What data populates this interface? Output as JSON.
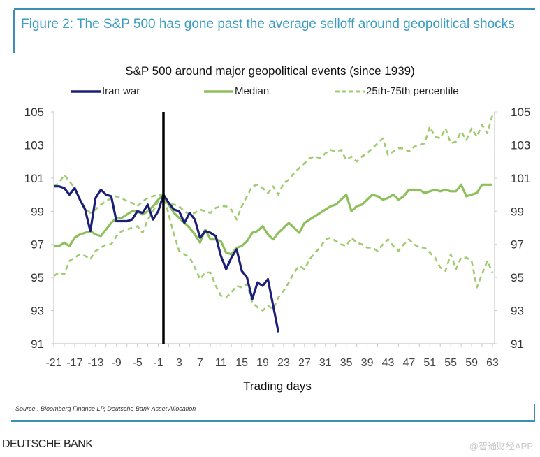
{
  "figure_title": "Figure 2: The S&P 500 has gone past the average selloff around geopolitical shocks",
  "source": "Source : Bloomberg Finance LP, Deutsche Bank Asset Allocation",
  "brand": "DEUTSCHE BANK",
  "watermark": "@智通财经APP",
  "colors": {
    "accent": "#3c9dc0",
    "iran_war": "#1b1f78",
    "median": "#8dbf5b",
    "percentile": "#9fcc6e",
    "event_line": "#000000"
  },
  "chart_data": {
    "type": "line",
    "title": "S&P 500 around major geopolitical events (since 1939)",
    "xlabel": "Trading days",
    "ylabel": "",
    "xlim": [
      -21,
      63
    ],
    "ylim": [
      91,
      105
    ],
    "x_ticks": [
      "-21",
      "-17",
      "-13",
      "-9",
      "-5",
      "-1",
      "3",
      "7",
      "11",
      "15",
      "19",
      "23",
      "27",
      "31",
      "35",
      "39",
      "43",
      "47",
      "51",
      "55",
      "59",
      "63"
    ],
    "y_ticks": [
      "105",
      "103",
      "101",
      "99",
      "97",
      "95",
      "93",
      "91"
    ],
    "y_axes": [
      "left",
      "right"
    ],
    "grid": false,
    "legend_position": "top",
    "event_marker_x": 0,
    "series": [
      {
        "name": "Iran war",
        "style": "solid",
        "x_start": -21,
        "values": [
          100.5,
          100.5,
          100.4,
          100.0,
          100.4,
          99.7,
          99.1,
          97.8,
          99.8,
          100.3,
          100.0,
          99.9,
          98.4,
          98.4,
          98.4,
          98.5,
          99.0,
          98.9,
          99.4,
          98.5,
          99.0,
          100.0,
          99.5,
          99.1,
          99.0,
          98.3,
          98.9,
          98.5,
          97.4,
          97.8,
          97.7,
          97.5,
          96.3,
          95.5,
          96.2,
          96.7,
          95.4,
          95.0,
          93.7,
          94.7,
          94.5,
          94.9,
          93.3,
          91.7
        ]
      },
      {
        "name": "Median",
        "style": "solid",
        "x_start": -21,
        "values": [
          96.9,
          96.9,
          97.1,
          96.9,
          97.4,
          97.6,
          97.7,
          97.8,
          97.6,
          97.5,
          97.9,
          98.3,
          98.6,
          98.6,
          98.8,
          99.0,
          99.0,
          98.8,
          99.0,
          99.3,
          99.7,
          100.0,
          99.4,
          98.9,
          98.6,
          98.3,
          98.0,
          97.6,
          97.1,
          97.9,
          97.3,
          97.3,
          97.2,
          96.5,
          96.4,
          96.8,
          96.9,
          97.2,
          97.7,
          97.8,
          98.1,
          97.6,
          97.3,
          97.7,
          98.0,
          98.3,
          98.0,
          97.7,
          98.3,
          98.5,
          98.7,
          98.9,
          99.1,
          99.3,
          99.4,
          99.7,
          100.0,
          99.0,
          99.3,
          99.4,
          99.7,
          100.0,
          99.9,
          99.7,
          99.8,
          100.0,
          99.7,
          99.9,
          100.3,
          100.3,
          100.3,
          100.1,
          100.2,
          100.3,
          100.2,
          100.3,
          100.2,
          100.2,
          100.6,
          99.9,
          100.0,
          100.1,
          100.6,
          100.6,
          100.6
        ]
      },
      {
        "name": "25th-75th percentile",
        "style": "dashed",
        "x_start": -21,
        "band": "upper",
        "values": [
          100.5,
          100.7,
          101.2,
          100.8,
          100.4,
          99.7,
          99.2,
          98.9,
          99.1,
          99.4,
          99.6,
          99.8,
          99.9,
          99.8,
          99.6,
          99.5,
          99.3,
          99.6,
          99.8,
          99.9,
          100.0,
          100.0,
          99.5,
          99.4,
          99.3,
          99.0,
          98.8,
          98.9,
          99.1,
          99.0,
          98.9,
          99.2,
          99.3,
          99.3,
          99.1,
          98.5,
          99.3,
          99.9,
          100.5,
          100.6,
          100.4,
          100.1,
          100.5,
          100.0,
          100.7,
          100.9,
          101.3,
          101.6,
          101.9,
          102.2,
          102.3,
          102.2,
          102.5,
          102.7,
          102.6,
          102.7,
          102.1,
          102.3,
          102.0,
          102.3,
          102.5,
          102.8,
          103.1,
          103.4,
          102.4,
          102.6,
          102.8,
          102.8,
          102.6,
          102.9,
          103.0,
          103.1,
          104.1,
          103.5,
          103.4,
          104.0,
          103.1,
          103.2,
          103.8,
          103.3,
          104.0,
          103.5,
          104.2,
          103.7,
          104.8
        ]
      },
      {
        "name": "25th-75th percentile",
        "style": "dashed",
        "x_start": -21,
        "band": "lower",
        "values": [
          95.1,
          95.3,
          95.2,
          96.0,
          96.2,
          96.4,
          96.3,
          96.1,
          96.6,
          96.8,
          97.0,
          97.0,
          97.5,
          97.8,
          97.9,
          98.0,
          98.1,
          97.7,
          98.5,
          99.0,
          99.6,
          100.0,
          98.8,
          97.6,
          96.6,
          96.4,
          96.2,
          95.6,
          94.9,
          95.3,
          95.3,
          94.5,
          93.9,
          93.8,
          94.1,
          94.5,
          94.4,
          94.6,
          93.5,
          93.2,
          93.0,
          93.3,
          93.1,
          93.8,
          94.2,
          94.7,
          95.3,
          95.7,
          95.5,
          96.1,
          96.5,
          96.8,
          97.3,
          97.4,
          97.2,
          97.0,
          96.9,
          97.4,
          97.1,
          97.0,
          96.8,
          96.8,
          96.6,
          97.0,
          97.3,
          96.9,
          96.6,
          97.0,
          97.3,
          97.0,
          96.8,
          96.8,
          96.5,
          96.2,
          95.6,
          95.4,
          96.4,
          95.5,
          96.2,
          96.2,
          96.0,
          94.4,
          95.2,
          96.0,
          95.3
        ]
      }
    ]
  }
}
